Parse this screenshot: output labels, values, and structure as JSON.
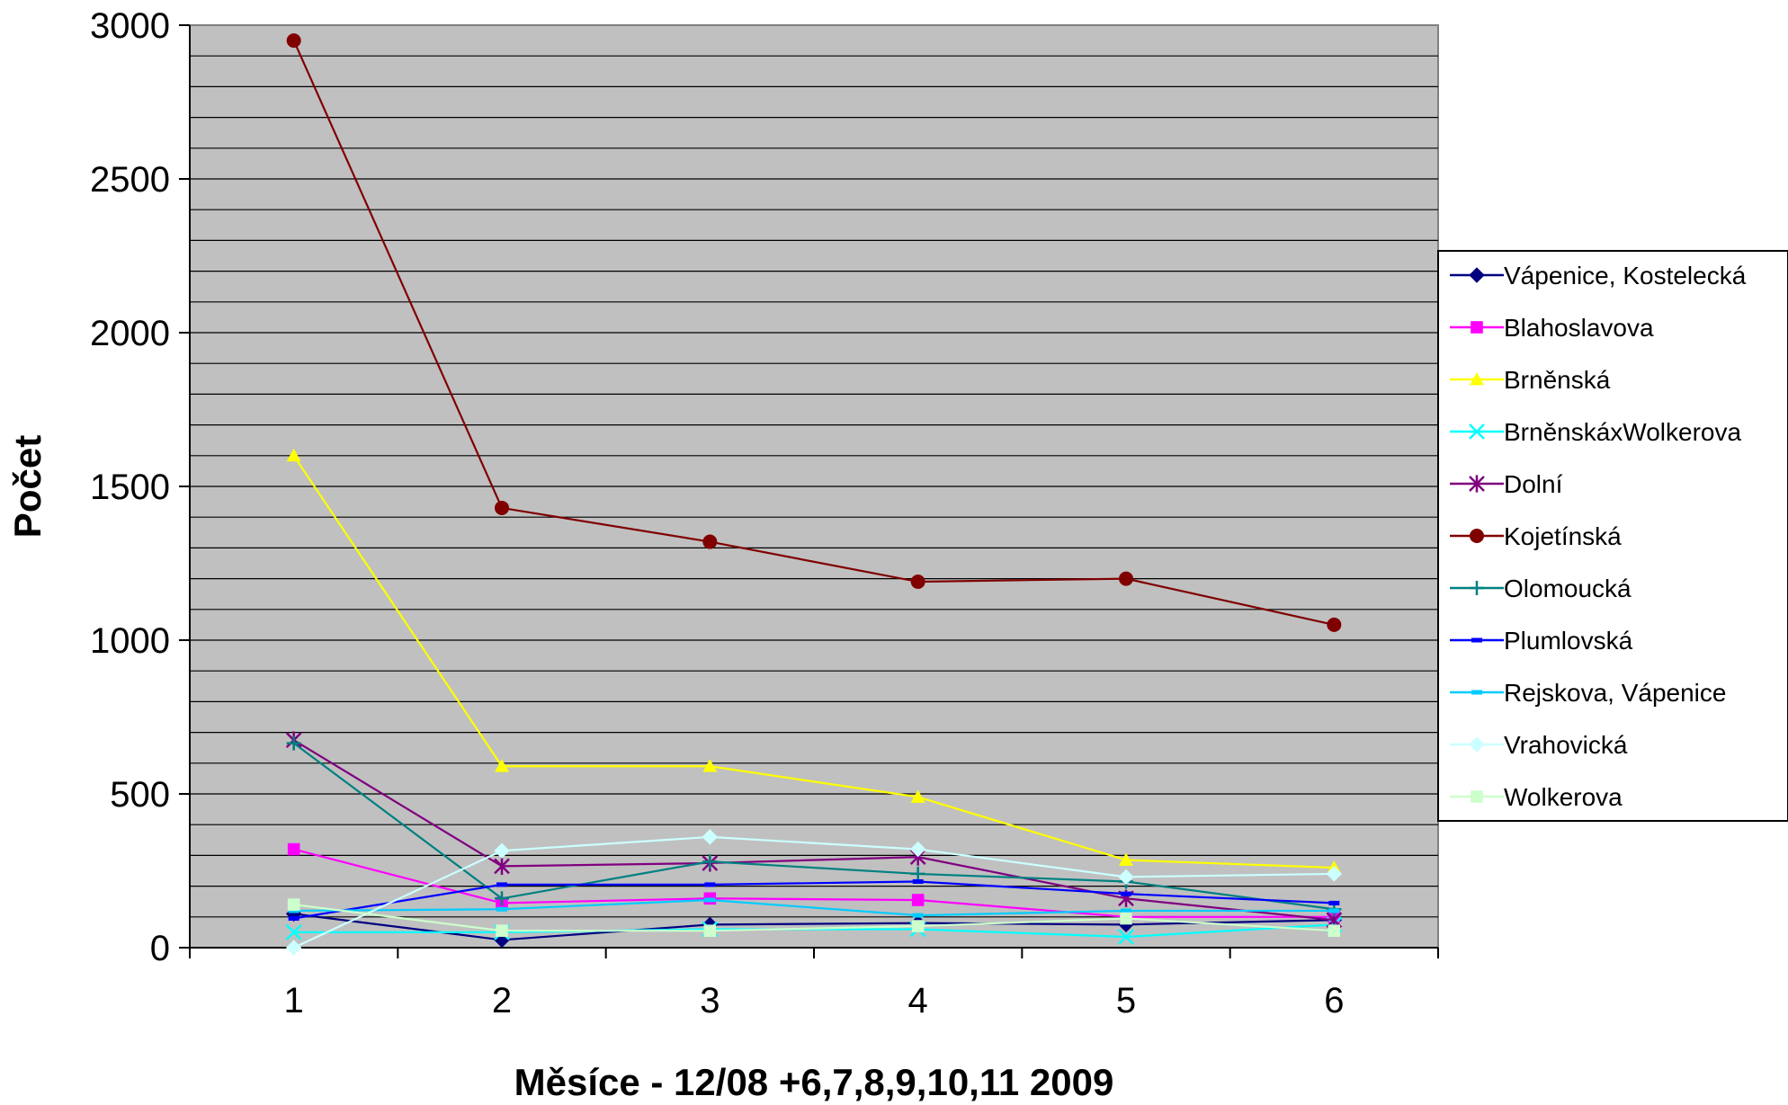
{
  "chart_data": {
    "type": "line",
    "title": "",
    "xlabel": "Měsíce - 12/08 +6,7,8,9,10,11 2009",
    "ylabel": "Počet",
    "categories": [
      "1",
      "2",
      "3",
      "4",
      "5",
      "6"
    ],
    "ylim": [
      0,
      3000
    ],
    "yticks": [
      "0",
      "500",
      "1000",
      "1500",
      "2000",
      "2500",
      "3000"
    ],
    "grid": "horizontal lines every 100",
    "plot_background": "#C0C0C0",
    "legend_position": "right",
    "series": [
      {
        "name": "Vápenice, Kostelecká",
        "color": "#000080",
        "marker": "diamond",
        "values": [
          110,
          25,
          75,
          80,
          75,
          90
        ]
      },
      {
        "name": "Blahoslavova",
        "color": "#FF00FF",
        "marker": "square",
        "values": [
          320,
          145,
          160,
          155,
          100,
          100
        ]
      },
      {
        "name": "Brněnská",
        "color": "#FFFF00",
        "marker": "triangle",
        "values": [
          1600,
          590,
          590,
          490,
          285,
          260
        ]
      },
      {
        "name": "BrněnskáxWolkerova",
        "color": "#00FFFF",
        "marker": "x",
        "values": [
          50,
          50,
          60,
          60,
          35,
          75
        ]
      },
      {
        "name": "Dolní",
        "color": "#800080",
        "marker": "star",
        "values": [
          675,
          265,
          275,
          295,
          160,
          90
        ]
      },
      {
        "name": "Kojetínská",
        "color": "#800000",
        "marker": "circle",
        "values": [
          2950,
          1430,
          1320,
          1190,
          1200,
          1050
        ]
      },
      {
        "name": "Olomoucká",
        "color": "#008080",
        "marker": "plus",
        "values": [
          665,
          160,
          280,
          240,
          215,
          125
        ]
      },
      {
        "name": "Plumlovská",
        "color": "#0000FF",
        "marker": "dash",
        "values": [
          95,
          205,
          205,
          215,
          175,
          145
        ]
      },
      {
        "name": "Rejskova, Vápenice",
        "color": "#00CCFF",
        "marker": "dash",
        "values": [
          120,
          125,
          155,
          105,
          120,
          120
        ]
      },
      {
        "name": "Vrahovická",
        "color": "#CCFFFF",
        "marker": "diamond",
        "values": [
          0,
          315,
          360,
          320,
          230,
          240
        ]
      },
      {
        "name": "Wolkerova",
        "color": "#CCFFCC",
        "marker": "square",
        "values": [
          140,
          55,
          55,
          70,
          95,
          55
        ]
      }
    ]
  }
}
